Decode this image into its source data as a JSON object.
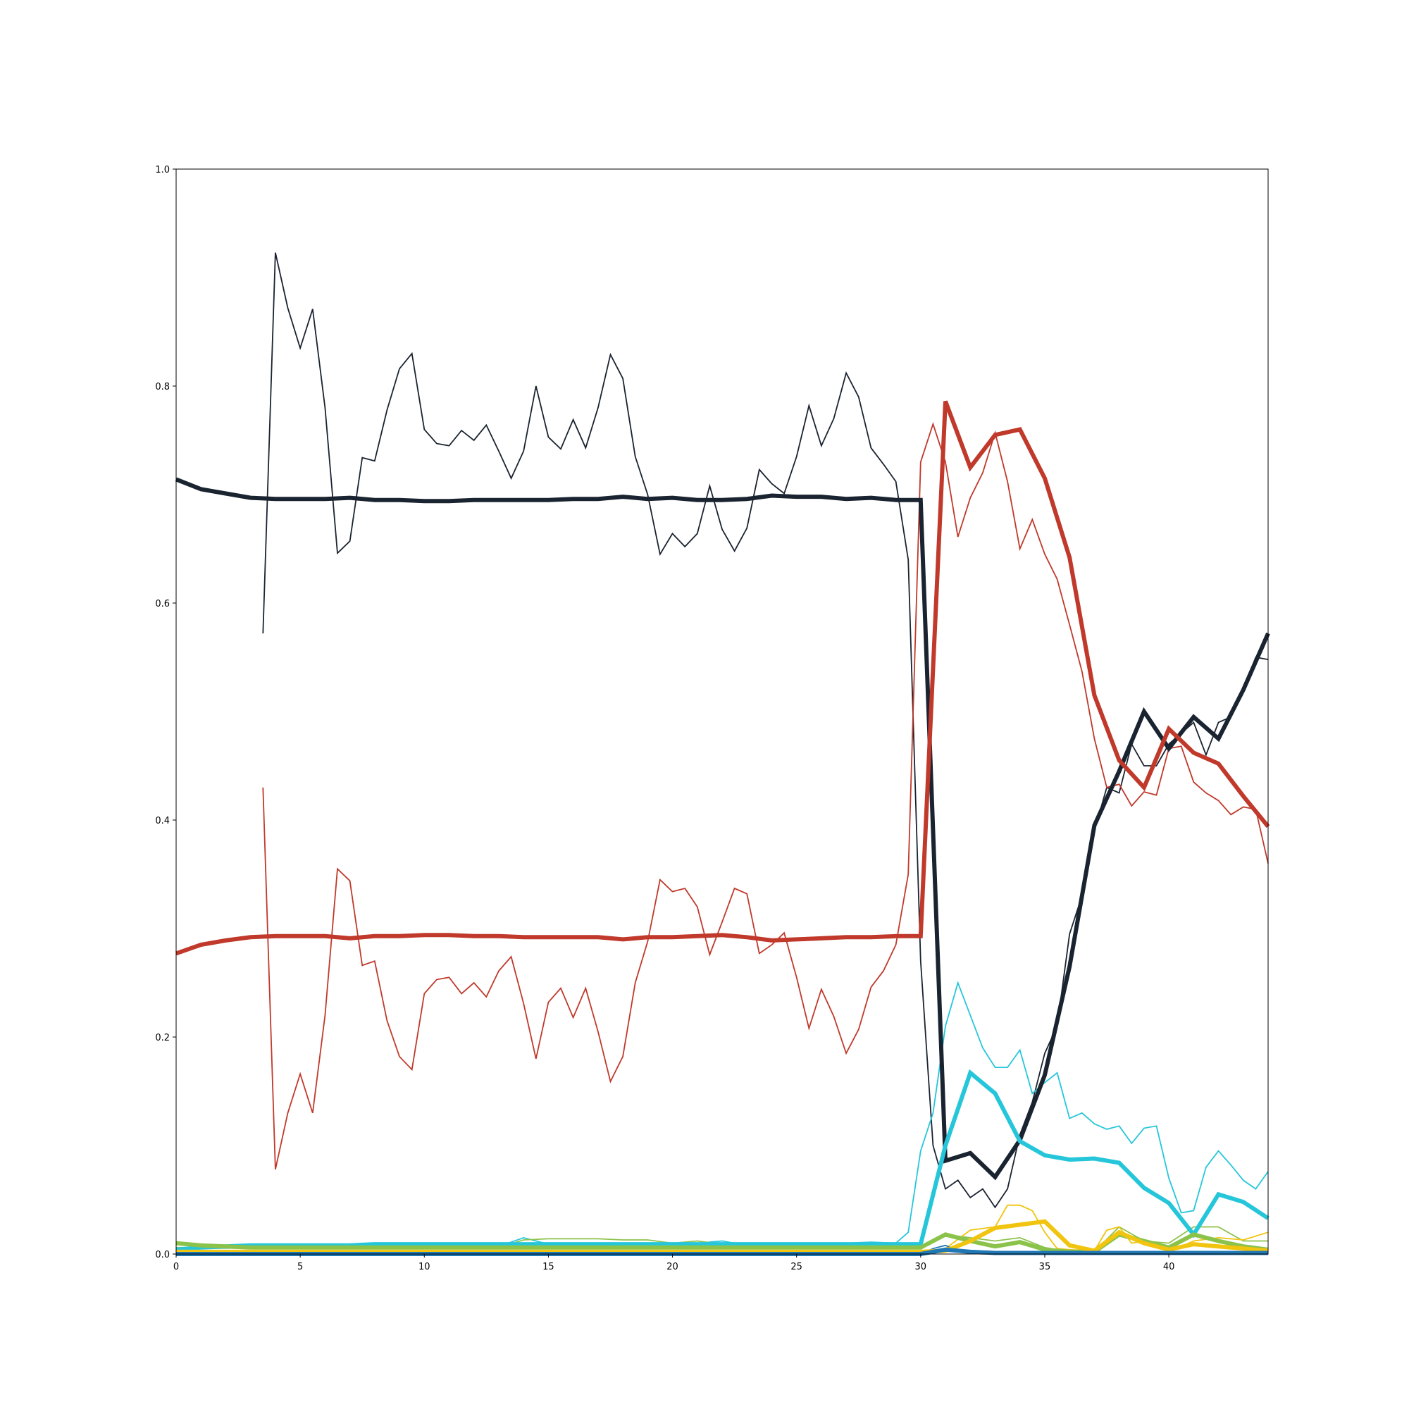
{
  "chart_data": {
    "type": "line",
    "title": "",
    "xlabel": "",
    "ylabel": "",
    "xlim": [
      0,
      44
    ],
    "ylim": [
      0,
      1
    ],
    "grid": false,
    "legend": "none",
    "x_ticks": [
      0,
      5,
      10,
      15,
      20,
      25,
      30,
      35,
      40
    ],
    "y_ticks": [
      0.0,
      0.2,
      0.4,
      0.6,
      0.8,
      1.0
    ],
    "x_tick_labels": [
      "0",
      "5",
      "10",
      "15",
      "20",
      "25",
      "30",
      "35",
      "40"
    ],
    "y_tick_labels": [
      "0.0",
      "0.2",
      "0.4",
      "0.6",
      "0.8",
      "1.0"
    ],
    "series": [
      {
        "color": "#1a2330",
        "style": "thin",
        "x": [
          3.5,
          4,
          4.5,
          5,
          5.5,
          6,
          6.5,
          7,
          7.5,
          8,
          8.5,
          9,
          9.5,
          10,
          10.5,
          11,
          11.5,
          12,
          12.5,
          13,
          13.5,
          14,
          14.5,
          15,
          15.5,
          16,
          16.5,
          17,
          17.5,
          18,
          18.5,
          19,
          19.5,
          20,
          20.5,
          21,
          21.5,
          22,
          22.5,
          23,
          23.5,
          24,
          24.5,
          25,
          25.5,
          26,
          26.5,
          27,
          27.5,
          28,
          28.5,
          29,
          29.5,
          30,
          30.5,
          31,
          31.5,
          32,
          32.5,
          33,
          33.5,
          34,
          34.5,
          35,
          35.5,
          36,
          36.5,
          37,
          37.5,
          38,
          38.5,
          39,
          39.5,
          40,
          40.5,
          41,
          41.5,
          42,
          42.5,
          43,
          43.5,
          44
        ],
        "y": [
          0.572,
          0.923,
          0.872,
          0.835,
          0.871,
          0.78,
          0.646,
          0.657,
          0.734,
          0.731,
          0.778,
          0.816,
          0.83,
          0.76,
          0.747,
          0.745,
          0.759,
          0.75,
          0.764,
          0.74,
          0.715,
          0.74,
          0.8,
          0.753,
          0.742,
          0.769,
          0.743,
          0.78,
          0.829,
          0.807,
          0.735,
          0.7,
          0.645,
          0.664,
          0.652,
          0.664,
          0.708,
          0.668,
          0.648,
          0.669,
          0.723,
          0.71,
          0.701,
          0.735,
          0.782,
          0.745,
          0.77,
          0.812,
          0.79,
          0.743,
          0.728,
          0.712,
          0.64,
          0.27,
          0.1,
          0.06,
          0.068,
          0.052,
          0.06,
          0.043,
          0.06,
          0.11,
          0.14,
          0.185,
          0.21,
          0.295,
          0.33,
          0.39,
          0.43,
          0.425,
          0.47,
          0.45,
          0.45,
          0.47,
          0.48,
          0.49,
          0.46,
          0.49,
          0.495,
          0.52,
          0.55,
          0.548
        ]
      },
      {
        "color": "#1a2330",
        "style": "thick",
        "x": [
          0,
          1,
          2,
          3,
          4,
          5,
          6,
          7,
          8,
          9,
          10,
          11,
          12,
          13,
          14,
          15,
          16,
          17,
          18,
          19,
          20,
          21,
          22,
          23,
          24,
          25,
          26,
          27,
          28,
          29,
          30,
          31,
          32,
          33,
          34,
          35,
          36,
          37,
          38,
          39,
          40,
          41,
          42,
          43,
          44
        ],
        "y": [
          0.714,
          0.705,
          0.701,
          0.697,
          0.696,
          0.696,
          0.696,
          0.697,
          0.695,
          0.695,
          0.694,
          0.694,
          0.695,
          0.695,
          0.695,
          0.695,
          0.696,
          0.696,
          0.698,
          0.696,
          0.697,
          0.695,
          0.695,
          0.696,
          0.699,
          0.698,
          0.698,
          0.696,
          0.697,
          0.695,
          0.695,
          0.086,
          0.093,
          0.071,
          0.105,
          0.165,
          0.265,
          0.395,
          0.445,
          0.5,
          0.466,
          0.495,
          0.475,
          0.52,
          0.572
        ]
      },
      {
        "color": "#c0392b",
        "style": "thin",
        "x": [
          3.5,
          4,
          4.5,
          5,
          5.5,
          6,
          6.5,
          7,
          7.5,
          8,
          8.5,
          9,
          9.5,
          10,
          10.5,
          11,
          11.5,
          12,
          12.5,
          13,
          13.5,
          14,
          14.5,
          15,
          15.5,
          16,
          16.5,
          17,
          17.5,
          18,
          18.5,
          19,
          19.5,
          20,
          20.5,
          21,
          21.5,
          22,
          22.5,
          23,
          23.5,
          24,
          24.5,
          25,
          25.5,
          26,
          26.5,
          27,
          27.5,
          28,
          28.5,
          29,
          29.5,
          30,
          30.5,
          31,
          31.5,
          32,
          32.5,
          33,
          33.5,
          34,
          34.5,
          35,
          35.5,
          36,
          36.5,
          37,
          37.5,
          38,
          38.5,
          39,
          39.5,
          40,
          40.5,
          41,
          41.5,
          42,
          42.5,
          43,
          43.5,
          44
        ],
        "y": [
          0.43,
          0.078,
          0.13,
          0.166,
          0.13,
          0.22,
          0.355,
          0.344,
          0.266,
          0.27,
          0.215,
          0.182,
          0.17,
          0.24,
          0.253,
          0.255,
          0.24,
          0.25,
          0.237,
          0.261,
          0.274,
          0.231,
          0.18,
          0.232,
          0.245,
          0.218,
          0.245,
          0.205,
          0.159,
          0.182,
          0.25,
          0.288,
          0.345,
          0.334,
          0.337,
          0.32,
          0.276,
          0.306,
          0.337,
          0.332,
          0.277,
          0.285,
          0.296,
          0.255,
          0.208,
          0.244,
          0.219,
          0.185,
          0.207,
          0.246,
          0.261,
          0.285,
          0.35,
          0.73,
          0.765,
          0.73,
          0.661,
          0.697,
          0.72,
          0.757,
          0.712,
          0.65,
          0.677,
          0.645,
          0.622,
          0.58,
          0.537,
          0.475,
          0.43,
          0.433,
          0.413,
          0.426,
          0.423,
          0.466,
          0.468,
          0.435,
          0.425,
          0.418,
          0.405,
          0.412,
          0.41,
          0.36
        ]
      },
      {
        "color": "#c0392b",
        "style": "thick",
        "x": [
          0,
          1,
          2,
          3,
          4,
          5,
          6,
          7,
          8,
          9,
          10,
          11,
          12,
          13,
          14,
          15,
          16,
          17,
          18,
          19,
          20,
          21,
          22,
          23,
          24,
          25,
          26,
          27,
          28,
          29,
          30,
          31,
          32,
          33,
          34,
          35,
          36,
          37,
          38,
          39,
          40,
          41,
          42,
          43,
          44
        ],
        "y": [
          0.277,
          0.285,
          0.289,
          0.292,
          0.293,
          0.293,
          0.293,
          0.291,
          0.293,
          0.293,
          0.294,
          0.294,
          0.293,
          0.293,
          0.292,
          0.292,
          0.292,
          0.292,
          0.29,
          0.292,
          0.292,
          0.293,
          0.294,
          0.292,
          0.289,
          0.29,
          0.291,
          0.292,
          0.292,
          0.293,
          0.293,
          0.786,
          0.725,
          0.755,
          0.76,
          0.715,
          0.642,
          0.515,
          0.455,
          0.43,
          0.484,
          0.462,
          0.452,
          0.422,
          0.394
        ]
      },
      {
        "color": "#26c6da",
        "style": "thin",
        "x": [
          0,
          13,
          14,
          15,
          16,
          17,
          18,
          19,
          20,
          21,
          22,
          23,
          24,
          25,
          26,
          27,
          28,
          29,
          29.5,
          30,
          30.5,
          31,
          31.5,
          32,
          32.5,
          33,
          33.5,
          34,
          34.5,
          35,
          35.5,
          36,
          36.5,
          37,
          37.5,
          38,
          38.5,
          39,
          39.5,
          40,
          40.5,
          41,
          41.5,
          42,
          42.5,
          43,
          43.5,
          44
        ],
        "y": [
          0.005,
          0.007,
          0.015,
          0.009,
          0.009,
          0.008,
          0.009,
          0.008,
          0.008,
          0.01,
          0.012,
          0.008,
          0.007,
          0.008,
          0.01,
          0.01,
          0.011,
          0.01,
          0.02,
          0.095,
          0.13,
          0.21,
          0.25,
          0.22,
          0.19,
          0.172,
          0.172,
          0.188,
          0.148,
          0.158,
          0.167,
          0.125,
          0.13,
          0.12,
          0.115,
          0.118,
          0.102,
          0.116,
          0.118,
          0.07,
          0.038,
          0.04,
          0.08,
          0.095,
          0.082,
          0.068,
          0.06,
          0.076
        ]
      },
      {
        "color": "#26c6da",
        "style": "thick",
        "x": [
          0,
          1,
          2,
          3,
          4,
          5,
          6,
          7,
          8,
          9,
          10,
          11,
          12,
          13,
          14,
          15,
          16,
          17,
          18,
          19,
          20,
          21,
          22,
          23,
          24,
          25,
          26,
          27,
          28,
          29,
          30,
          31,
          32,
          33,
          34,
          35,
          36,
          37,
          38,
          39,
          40,
          41,
          42,
          43,
          44
        ],
        "y": [
          0.004,
          0.006,
          0.007,
          0.008,
          0.008,
          0.008,
          0.008,
          0.008,
          0.009,
          0.009,
          0.009,
          0.009,
          0.009,
          0.009,
          0.009,
          0.009,
          0.009,
          0.009,
          0.009,
          0.009,
          0.009,
          0.009,
          0.009,
          0.009,
          0.009,
          0.009,
          0.009,
          0.009,
          0.009,
          0.009,
          0.009,
          0.1,
          0.167,
          0.148,
          0.104,
          0.091,
          0.087,
          0.088,
          0.084,
          0.061,
          0.047,
          0.018,
          0.055,
          0.048,
          0.033
        ]
      },
      {
        "color": "#8bc34a",
        "style": "thin",
        "x": [
          0,
          13,
          14,
          15,
          16,
          17,
          18,
          19,
          20,
          21,
          22,
          23,
          24,
          25,
          26,
          27,
          28,
          29,
          30,
          31,
          32,
          33,
          34,
          35,
          36,
          37,
          38,
          39,
          40,
          41,
          42,
          43,
          44
        ],
        "y": [
          0.006,
          0.006,
          0.013,
          0.014,
          0.014,
          0.014,
          0.013,
          0.013,
          0.01,
          0.012,
          0.009,
          0.006,
          0.006,
          0.006,
          0.007,
          0.006,
          0.006,
          0.006,
          0.006,
          0.018,
          0.015,
          0.012,
          0.015,
          0.006,
          0.002,
          0.002,
          0.025,
          0.012,
          0.01,
          0.025,
          0.025,
          0.012,
          0.012
        ]
      },
      {
        "color": "#8bc34a",
        "style": "thick",
        "x": [
          0,
          1,
          2,
          3,
          4,
          5,
          6,
          7,
          8,
          9,
          10,
          11,
          12,
          13,
          14,
          15,
          16,
          17,
          18,
          19,
          20,
          21,
          22,
          23,
          24,
          25,
          26,
          27,
          28,
          29,
          30,
          31,
          32,
          33,
          34,
          35,
          36,
          37,
          38,
          39,
          40,
          41,
          42,
          43,
          44
        ],
        "y": [
          0.01,
          0.008,
          0.007,
          0.006,
          0.006,
          0.006,
          0.006,
          0.006,
          0.006,
          0.006,
          0.006,
          0.006,
          0.006,
          0.006,
          0.006,
          0.006,
          0.006,
          0.006,
          0.006,
          0.006,
          0.006,
          0.006,
          0.006,
          0.006,
          0.006,
          0.006,
          0.006,
          0.006,
          0.006,
          0.006,
          0.006,
          0.018,
          0.012,
          0.007,
          0.011,
          0.004,
          0.002,
          0.002,
          0.018,
          0.012,
          0.006,
          0.018,
          0.012,
          0.007,
          0.004
        ]
      },
      {
        "color": "#f1c40f",
        "style": "thin",
        "x": [
          0,
          30,
          31,
          32,
          33,
          33.5,
          34,
          34.5,
          35,
          35.5,
          36,
          37,
          37.5,
          38,
          38.5,
          39,
          40,
          41,
          42,
          43,
          44
        ],
        "y": [
          0.002,
          0.002,
          0.005,
          0.022,
          0.025,
          0.045,
          0.045,
          0.04,
          0.02,
          0.005,
          0.004,
          0.003,
          0.022,
          0.025,
          0.01,
          0.012,
          0.002,
          0.012,
          0.015,
          0.013,
          0.02
        ]
      },
      {
        "color": "#f1c40f",
        "style": "thick",
        "x": [
          0,
          1,
          2,
          3,
          4,
          5,
          6,
          7,
          8,
          9,
          10,
          11,
          12,
          13,
          14,
          15,
          16,
          17,
          18,
          19,
          20,
          21,
          22,
          23,
          24,
          25,
          26,
          27,
          28,
          29,
          30,
          31,
          32,
          33,
          34,
          35,
          36,
          37,
          38,
          39,
          40,
          41,
          42,
          43,
          44
        ],
        "y": [
          0.002,
          0.002,
          0.002,
          0.002,
          0.002,
          0.002,
          0.002,
          0.002,
          0.002,
          0.002,
          0.002,
          0.002,
          0.002,
          0.002,
          0.002,
          0.002,
          0.002,
          0.002,
          0.002,
          0.002,
          0.002,
          0.002,
          0.002,
          0.002,
          0.002,
          0.002,
          0.002,
          0.002,
          0.002,
          0.002,
          0.002,
          0.003,
          0.012,
          0.024,
          0.027,
          0.03,
          0.008,
          0.003,
          0.02,
          0.01,
          0.004,
          0.009,
          0.007,
          0.005,
          0.003
        ]
      },
      {
        "color": "#1f77b4",
        "style": "thin",
        "x": [
          0,
          30,
          30.5,
          31,
          31.5,
          32,
          33,
          44
        ],
        "y": [
          0.0,
          0.0,
          0.005,
          0.008,
          0.003,
          0.001,
          0.001,
          0.001
        ]
      },
      {
        "color": "#1f77b4",
        "style": "thick",
        "x": [
          0,
          30,
          31,
          32,
          33,
          44
        ],
        "y": [
          0.0,
          0.0,
          0.004,
          0.002,
          0.001,
          0.001
        ]
      }
    ]
  }
}
